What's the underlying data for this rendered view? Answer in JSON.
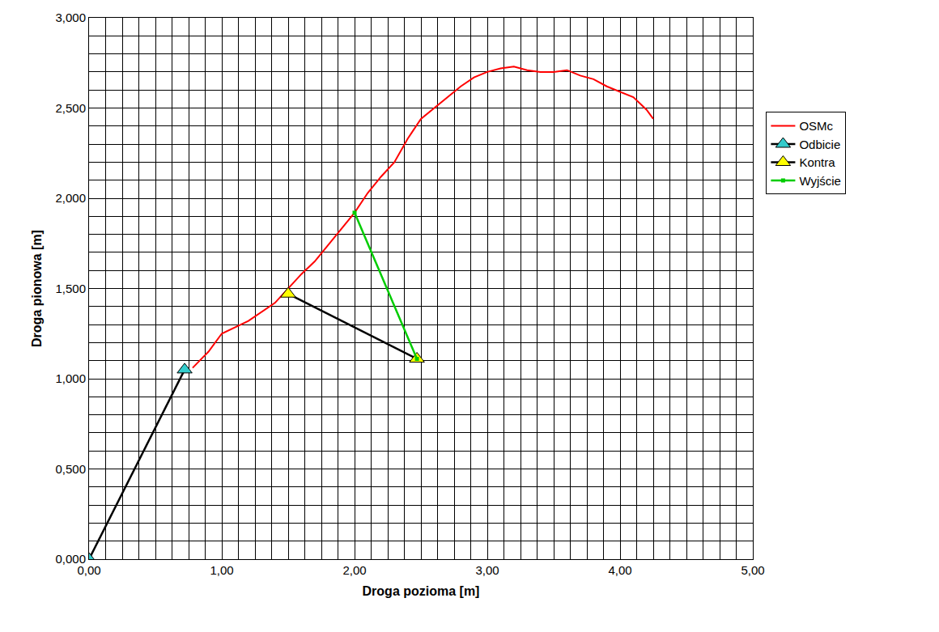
{
  "chart_data": {
    "type": "line",
    "x_label": "Droga pozioma [m]",
    "y_label": "Droga pionowa [m]",
    "xlim": [
      0,
      5
    ],
    "ylim": [
      0,
      3
    ],
    "xticks": [
      {
        "value": 0,
        "label": "0,00"
      },
      {
        "value": 1,
        "label": "1,00"
      },
      {
        "value": 2,
        "label": "2,00"
      },
      {
        "value": 3,
        "label": "3,00"
      },
      {
        "value": 4,
        "label": "4,00"
      },
      {
        "value": 5,
        "label": "5,00"
      }
    ],
    "yticks": [
      {
        "value": 0,
        "label": "0,000"
      },
      {
        "value": 0.5,
        "label": "0,500"
      },
      {
        "value": 1,
        "label": "1,000"
      },
      {
        "value": 1.5,
        "label": "1,500"
      },
      {
        "value": 2,
        "label": "2,000"
      },
      {
        "value": 2.5,
        "label": "2,500"
      },
      {
        "value": 3,
        "label": "3,000"
      }
    ],
    "grid": true,
    "legend": "right",
    "series": [
      {
        "name": "OSMc",
        "color": "#ff0000",
        "marker": "none",
        "line_style": "solid",
        "x": [
          0.78,
          0.9,
          1.0,
          1.2,
          1.4,
          1.5,
          1.6,
          1.7,
          1.8,
          1.9,
          2.0,
          2.1,
          2.2,
          2.3,
          2.4,
          2.5,
          2.6,
          2.7,
          2.8,
          2.9,
          3.0,
          3.1,
          3.2,
          3.3,
          3.4,
          3.5,
          3.6,
          3.7,
          3.8,
          3.9,
          4.0,
          4.1,
          4.2,
          4.25
        ],
        "values": [
          1.06,
          1.15,
          1.25,
          1.32,
          1.42,
          1.5,
          1.58,
          1.65,
          1.74,
          1.83,
          1.92,
          2.03,
          2.12,
          2.2,
          2.33,
          2.44,
          2.5,
          2.56,
          2.62,
          2.67,
          2.7,
          2.72,
          2.73,
          2.71,
          2.7,
          2.7,
          2.71,
          2.68,
          2.66,
          2.62,
          2.59,
          2.56,
          2.49,
          2.44
        ]
      },
      {
        "name": "Odbicie",
        "color": "#33cccc",
        "marker": "triangle",
        "line_style": "solid",
        "x": [
          0,
          0.72
        ],
        "values": [
          0,
          1.05
        ]
      },
      {
        "name": "Kontra",
        "color": "#ffff00",
        "marker": "triangle",
        "line_style": "solid",
        "x": [
          1.5,
          2.47
        ],
        "values": [
          1.47,
          1.11
        ]
      },
      {
        "name": "Wyjście",
        "color": "#00cc00",
        "marker": "square",
        "line_style": "solid",
        "x": [
          2.0,
          2.47
        ],
        "values": [
          1.92,
          1.11
        ]
      }
    ]
  }
}
